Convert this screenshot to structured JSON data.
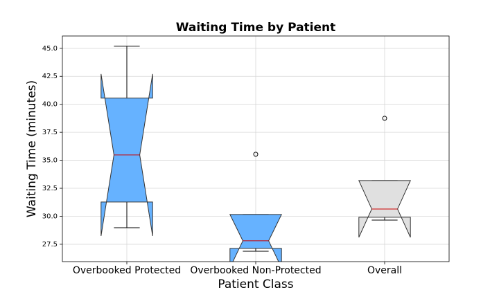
{
  "chart_data": {
    "type": "boxplot",
    "title": "Waiting Time by Patient",
    "xlabel": "Patient Class",
    "ylabel": "Waiting Time (minutes)",
    "categories": [
      "Overbooked Protected",
      "Overbooked Non-Protected",
      "Overall"
    ],
    "colors": [
      "#66b2ff",
      "#66b2ff",
      "#e0e0e0"
    ],
    "median_color": "#cc0000",
    "boxes": [
      {
        "whislo": 28.98,
        "q1": 31.27,
        "med": 35.48,
        "q3": 40.55,
        "whishi": 45.19,
        "notch_low": 28.24,
        "notch_high": 42.71,
        "fliers": []
      },
      {
        "whislo": 26.88,
        "q1": 27.13,
        "med": 27.81,
        "q3": 30.16,
        "whishi": 30.16,
        "notch_low": 25.4,
        "notch_high": 30.16,
        "fliers": [
          35.54
        ]
      },
      {
        "whislo": 29.66,
        "q1": 29.91,
        "med": 30.65,
        "q3": 33.19,
        "whishi": 33.19,
        "notch_low": 28.12,
        "notch_high": 33.19,
        "fliers": [
          38.75
        ]
      }
    ],
    "ylim": [
      25.95,
      46.1
    ],
    "yticks": [
      27.5,
      {
        "value": 30,
        "label": "30.0"
      },
      32.5,
      {
        "value": 35,
        "label": "35.0"
      },
      37.5,
      {
        "value": 40,
        "label": "40.0"
      },
      42.5,
      {
        "value": 45,
        "label": "45.0"
      }
    ],
    "grid": true
  }
}
